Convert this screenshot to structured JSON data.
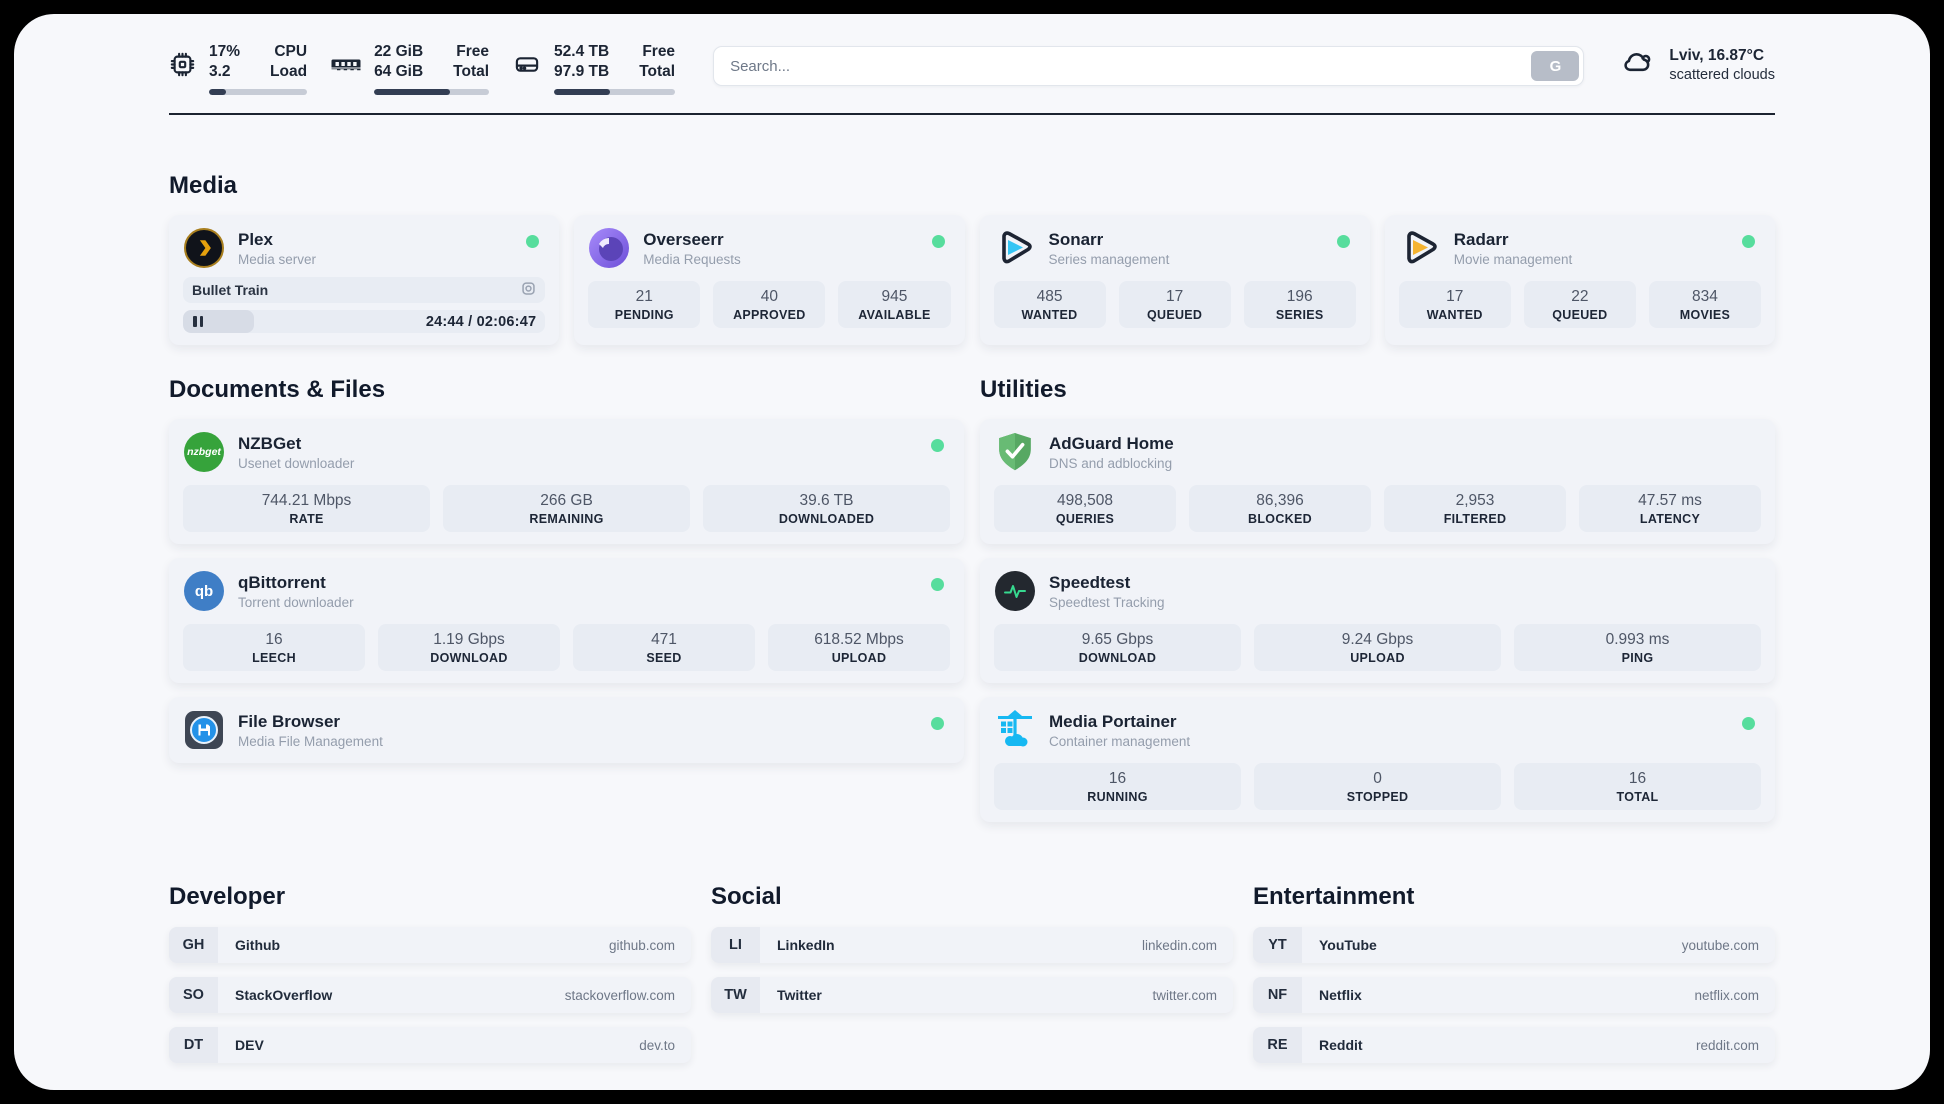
{
  "header": {
    "cpu": {
      "values": [
        "17%",
        "3.2"
      ],
      "labels": [
        "CPU",
        "Load"
      ],
      "progress_pct": 17
    },
    "ram": {
      "values": [
        "22 GiB",
        "64 GiB"
      ],
      "labels": [
        "Free",
        "Total"
      ],
      "progress_pct": 66
    },
    "storage": {
      "values": [
        "52.4 TB",
        "97.9 TB"
      ],
      "labels": [
        "Free",
        "Total"
      ],
      "progress_pct": 46
    },
    "search": {
      "placeholder": "Search...",
      "engine_label": "G"
    },
    "weather": {
      "summary": "Lviv, 16.87°C",
      "condition": "scattered clouds"
    }
  },
  "media": {
    "title": "Media",
    "plex": {
      "name": "Plex",
      "subtitle": "Media server",
      "now_playing": "Bullet Train",
      "time": "24:44 / 02:06:47",
      "progress_pct": 19.5,
      "icon_text": ">"
    },
    "overseerr": {
      "name": "Overseerr",
      "subtitle": "Media Requests",
      "stats": [
        {
          "value": "21",
          "label": "PENDING"
        },
        {
          "value": "40",
          "label": "APPROVED"
        },
        {
          "value": "945",
          "label": "AVAILABLE"
        }
      ]
    },
    "sonarr": {
      "name": "Sonarr",
      "subtitle": "Series management",
      "stats": [
        {
          "value": "485",
          "label": "WANTED"
        },
        {
          "value": "17",
          "label": "QUEUED"
        },
        {
          "value": "196",
          "label": "SERIES"
        }
      ]
    },
    "radarr": {
      "name": "Radarr",
      "subtitle": "Movie management",
      "stats": [
        {
          "value": "17",
          "label": "WANTED"
        },
        {
          "value": "22",
          "label": "QUEUED"
        },
        {
          "value": "834",
          "label": "MOVIES"
        }
      ]
    }
  },
  "documents": {
    "title": "Documents & Files",
    "nzbget": {
      "name": "NZBGet",
      "subtitle": "Usenet downloader",
      "logo_text": "nzbget",
      "stats": [
        {
          "value": "744.21 Mbps",
          "label": "RATE"
        },
        {
          "value": "266 GB",
          "label": "REMAINING"
        },
        {
          "value": "39.6 TB",
          "label": "DOWNLOADED"
        }
      ]
    },
    "qbittorrent": {
      "name": "qBittorrent",
      "subtitle": "Torrent downloader",
      "logo_text": "qb",
      "stats": [
        {
          "value": "16",
          "label": "LEECH"
        },
        {
          "value": "1.19 Gbps",
          "label": "DOWNLOAD"
        },
        {
          "value": "471",
          "label": "SEED"
        },
        {
          "value": "618.52 Mbps",
          "label": "UPLOAD"
        }
      ]
    },
    "filebrowser": {
      "name": "File Browser",
      "subtitle": "Media File Management"
    }
  },
  "utilities": {
    "title": "Utilities",
    "adguard": {
      "name": "AdGuard Home",
      "subtitle": "DNS and adblocking",
      "stats": [
        {
          "value": "498,508",
          "label": "QUERIES"
        },
        {
          "value": "86,396",
          "label": "BLOCKED"
        },
        {
          "value": "2,953",
          "label": "FILTERED"
        },
        {
          "value": "47.57 ms",
          "label": "LATENCY"
        }
      ]
    },
    "speedtest": {
      "name": "Speedtest",
      "subtitle": "Speedtest Tracking",
      "stats": [
        {
          "value": "9.65 Gbps",
          "label": "DOWNLOAD"
        },
        {
          "value": "9.24 Gbps",
          "label": "UPLOAD"
        },
        {
          "value": "0.993 ms",
          "label": "PING"
        }
      ]
    },
    "portainer": {
      "name": "Media Portainer",
      "subtitle": "Container management",
      "stats": [
        {
          "value": "16",
          "label": "RUNNING"
        },
        {
          "value": "0",
          "label": "STOPPED"
        },
        {
          "value": "16",
          "label": "TOTAL"
        }
      ]
    }
  },
  "bookmarks": [
    {
      "title": "Developer",
      "links": [
        {
          "abbr": "GH",
          "name": "Github",
          "url": "github.com"
        },
        {
          "abbr": "SO",
          "name": "StackOverflow",
          "url": "stackoverflow.com"
        },
        {
          "abbr": "DT",
          "name": "DEV",
          "url": "dev.to"
        }
      ]
    },
    {
      "title": "Social",
      "links": [
        {
          "abbr": "LI",
          "name": "LinkedIn",
          "url": "linkedin.com"
        },
        {
          "abbr": "TW",
          "name": "Twitter",
          "url": "twitter.com"
        }
      ]
    },
    {
      "title": "Entertainment",
      "links": [
        {
          "abbr": "YT",
          "name": "YouTube",
          "url": "youtube.com"
        },
        {
          "abbr": "NF",
          "name": "Netflix",
          "url": "netflix.com"
        },
        {
          "abbr": "RE",
          "name": "Reddit",
          "url": "reddit.com"
        }
      ]
    }
  ],
  "colors": {
    "status_online": "#57dd9d",
    "accent_dark": "#1c2330"
  }
}
